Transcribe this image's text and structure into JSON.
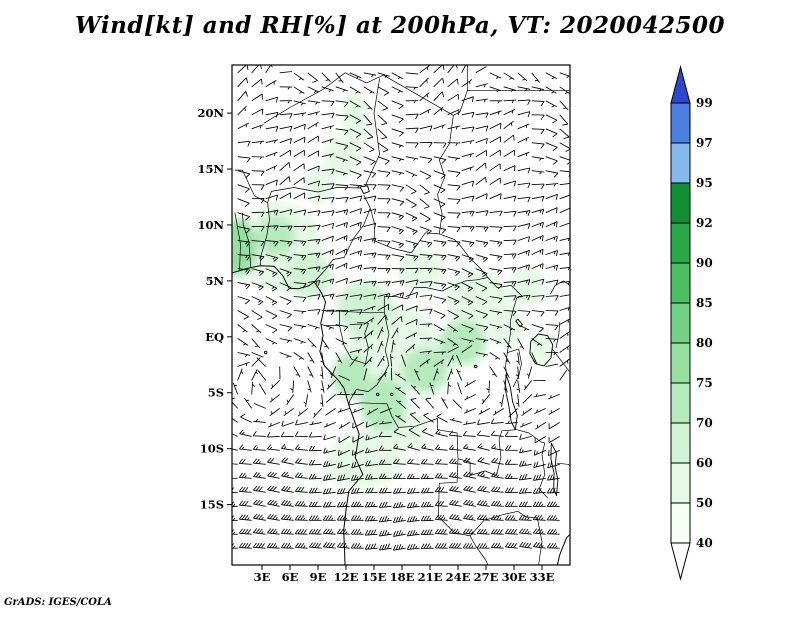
{
  "title": "Wind[kt] and RH[%] at 200hPa, VT: 2020042500",
  "credit": "GrADS: IGES/COLA",
  "chart_data": {
    "type": "heatmap",
    "subtype": "weather map: wind barbs over shaded relative humidity",
    "title": "Wind[kt] and RH[%] at 200hPa, VT: 2020042500",
    "fields": {
      "shaded": "RH [%]",
      "vector": "Wind [kt]"
    },
    "level": "200hPa",
    "valid_time": "2020042500",
    "x_tick_labels": [
      "3E",
      "6E",
      "9E",
      "12E",
      "15E",
      "18E",
      "21E",
      "24E",
      "27E",
      "30E",
      "33E"
    ],
    "x_tick_lons": [
      3,
      6,
      9,
      12,
      15,
      18,
      21,
      24,
      27,
      30,
      33
    ],
    "y_tick_labels": [
      "20N",
      "15N",
      "10N",
      "5N",
      "EQ",
      "5S",
      "10S",
      "15S"
    ],
    "y_tick_lats": [
      20,
      15,
      10,
      5,
      0,
      -5,
      -10,
      -15
    ],
    "lon_range_deg_e": [
      -0.2,
      36.0
    ],
    "lat_range_deg_n": [
      -20.4,
      24.3
    ],
    "grid": false,
    "legend_position": "right-colorbar",
    "colorbar": {
      "orientation": "vertical",
      "labels_top_to_bottom": [
        "99",
        "97",
        "95",
        "92",
        "90",
        "85",
        "80",
        "75",
        "70",
        "60",
        "50",
        "40"
      ],
      "segment_colors_top_to_bottom": [
        "#2b46cf",
        "#4a7fe0",
        "#86b9ec",
        "#0f8f35",
        "#2aa84a",
        "#4cbf63",
        "#72d184",
        "#95dfa1",
        "#b4eabc",
        "#cff3d3",
        "#e5f9e6",
        "#f5fdf4",
        "#ffffff"
      ]
    },
    "rh_shaded_regions_approx": [
      {
        "lon": 0.5,
        "lat": 8,
        "rx": 2,
        "ry": 2.5,
        "rh": 76
      },
      {
        "lon": 5,
        "lat": 8,
        "rx": 4.5,
        "ry": 4,
        "rh": 58
      },
      {
        "lon": 4.5,
        "lat": 9,
        "rx": 2,
        "ry": 1.8,
        "rh": 72
      },
      {
        "lon": 8,
        "lat": 5.5,
        "rx": 2.5,
        "ry": 2,
        "rh": 64
      },
      {
        "lon": 11.5,
        "lat": 16,
        "rx": 2,
        "ry": 2,
        "rh": 55
      },
      {
        "lon": 13,
        "lat": 19.5,
        "rx": 1.5,
        "ry": 2.5,
        "rh": 52
      },
      {
        "lon": 9,
        "lat": 13.5,
        "rx": 1.5,
        "ry": 1.5,
        "rh": 52
      },
      {
        "lon": 17,
        "lat": -1,
        "rx": 5,
        "ry": 4,
        "rh": 55
      },
      {
        "lon": 14,
        "lat": 2.5,
        "rx": 3,
        "ry": 2.5,
        "rh": 60
      },
      {
        "lon": 20.5,
        "lat": -3,
        "rx": 2.5,
        "ry": 2,
        "rh": 74
      },
      {
        "lon": 16,
        "lat": -6,
        "rx": 2.5,
        "ry": 2.5,
        "rh": 73
      },
      {
        "lon": 12.5,
        "lat": -3.5,
        "rx": 2,
        "ry": 2,
        "rh": 70
      },
      {
        "lon": 18.5,
        "lat": -8.5,
        "rx": 2.5,
        "ry": 1.8,
        "rh": 58
      },
      {
        "lon": 14,
        "lat": -11,
        "rx": 4,
        "ry": 2.5,
        "rh": 50
      },
      {
        "lon": 9,
        "lat": -13,
        "rx": 3,
        "ry": 2,
        "rh": 47
      },
      {
        "lon": 26,
        "lat": 3.5,
        "rx": 3.5,
        "ry": 2.5,
        "rh": 56
      },
      {
        "lon": 24.5,
        "lat": -0.5,
        "rx": 2.5,
        "ry": 2,
        "rh": 70
      },
      {
        "lon": 29,
        "lat": 1,
        "rx": 2,
        "ry": 2,
        "rh": 52
      },
      {
        "lon": 31.5,
        "lat": 4.5,
        "rx": 2,
        "ry": 1.8,
        "rh": 50
      },
      {
        "lon": 33,
        "lat": -1,
        "rx": 1.5,
        "ry": 1.5,
        "rh": 55
      },
      {
        "lon": 20,
        "lat": 6,
        "rx": 2.5,
        "ry": 2,
        "rh": 52
      }
    ],
    "wind_field_approx": {
      "barb_units": "kt",
      "grid_step_deg": {
        "lon": 1.5,
        "lat": 1.25
      },
      "summary": "Light NE-E winds 5-15 kt north of 5N; weak variable flow near the equator; W-SW winds strengthening to 25-40 kt south of 10S."
    }
  }
}
